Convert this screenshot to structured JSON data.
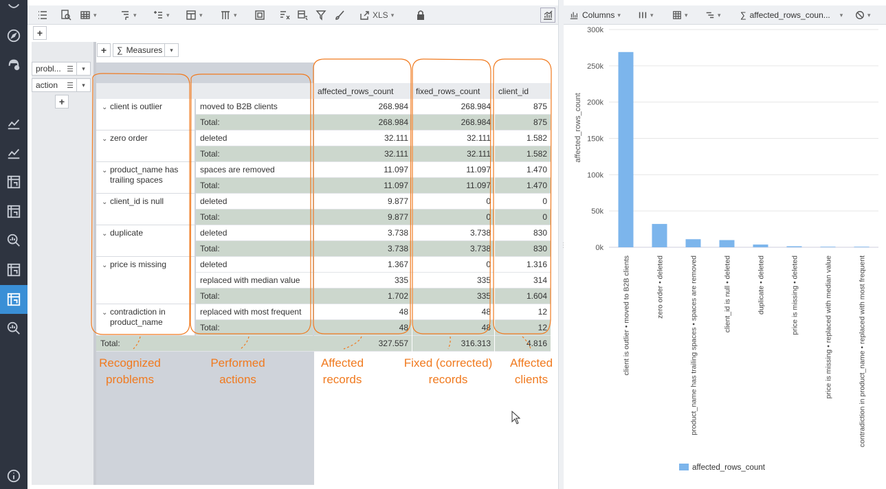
{
  "nav": {
    "items": [
      "app-icon",
      "compass-icon",
      "agent-icon",
      "chart-icon",
      "chart-icon",
      "pivot-icon",
      "pivot-icon",
      "search-chart-icon",
      "pivot-icon",
      "pivot-icon",
      "search-chart-icon"
    ],
    "info_icon": "info-icon"
  },
  "toolbar": {
    "export_label": "XLS"
  },
  "pivot": {
    "measures_label": "Measures",
    "row_fields": [
      {
        "label": "probl..."
      },
      {
        "label": "action"
      }
    ],
    "columns": [
      "affected_rows_count",
      "fixed_rows_count",
      "client_id"
    ],
    "groups": [
      {
        "problem": "client is outlier",
        "rows": [
          {
            "action": "moved to B2B clients",
            "values": [
              "268.984",
              "268.984",
              "875"
            ],
            "total": false
          },
          {
            "action": "Total:",
            "values": [
              "268.984",
              "268.984",
              "875"
            ],
            "total": true
          }
        ]
      },
      {
        "problem": "zero order",
        "rows": [
          {
            "action": "deleted",
            "values": [
              "32.111",
              "32.111",
              "1.582"
            ],
            "total": false
          },
          {
            "action": "Total:",
            "values": [
              "32.111",
              "32.111",
              "1.582"
            ],
            "total": true
          }
        ]
      },
      {
        "problem": "product_name has trailing spaces",
        "rows": [
          {
            "action": "spaces are removed",
            "values": [
              "11.097",
              "11.097",
              "1.470"
            ],
            "total": false
          },
          {
            "action": "Total:",
            "values": [
              "11.097",
              "11.097",
              "1.470"
            ],
            "total": true
          }
        ]
      },
      {
        "problem": "client_id is null",
        "rows": [
          {
            "action": "deleted",
            "values": [
              "9.877",
              "0",
              "0"
            ],
            "total": false
          },
          {
            "action": "Total:",
            "values": [
              "9.877",
              "0",
              "0"
            ],
            "total": true
          }
        ]
      },
      {
        "problem": "duplicate",
        "rows": [
          {
            "action": "deleted",
            "values": [
              "3.738",
              "3.738",
              "830"
            ],
            "total": false
          },
          {
            "action": "Total:",
            "values": [
              "3.738",
              "3.738",
              "830"
            ],
            "total": true
          }
        ]
      },
      {
        "problem": "price is missing",
        "rows": [
          {
            "action": "deleted",
            "values": [
              "1.367",
              "0",
              "1.316"
            ],
            "total": false
          },
          {
            "action": "replaced with median value",
            "values": [
              "335",
              "335",
              "314"
            ],
            "total": false
          },
          {
            "action": "Total:",
            "values": [
              "1.702",
              "335",
              "1.604"
            ],
            "total": true
          }
        ]
      },
      {
        "problem": "contradiction in product_name",
        "rows": [
          {
            "action": "replaced with most frequent",
            "values": [
              "48",
              "48",
              "12"
            ],
            "total": false
          },
          {
            "action": "Total:",
            "values": [
              "48",
              "48",
              "12"
            ],
            "total": true
          }
        ]
      }
    ],
    "grand_total": {
      "label": "Total:",
      "values": [
        "327.557",
        "316.313",
        "4.816"
      ]
    }
  },
  "annotations": [
    {
      "text": "Recognized\nproblems",
      "color": "#f07a1f"
    },
    {
      "text": "Performed\nactions",
      "color": "#f07a1f"
    },
    {
      "text": "Affected\nrecords",
      "color": "#f07a1f"
    },
    {
      "text": "Fixed (corrected)\nrecords",
      "color": "#f07a1f"
    },
    {
      "text": "Affected\nclients",
      "color": "#f07a1f"
    }
  ],
  "chart_toolbar": {
    "type_label": "Columns",
    "measure_label": "affected_rows_coun..."
  },
  "chart_data": {
    "type": "bar",
    "categories": [
      "client is outlier • moved to B2B clients",
      "zero order • deleted",
      "product_name has trailing spaces • spaces are removed",
      "client_id is null • deleted",
      "duplicate • deleted",
      "price is missing • deleted",
      "price is missing • replaced with median value",
      "contradiction in product_name • replaced with most frequent"
    ],
    "series": [
      {
        "name": "affected_rows_count",
        "values": [
          268984,
          32111,
          11097,
          9877,
          3738,
          1367,
          335,
          48
        ],
        "color": "#7cb5ec"
      }
    ],
    "ylabel": "affected_rows_count",
    "ylim": [
      0,
      300000
    ],
    "yticks": [
      "0k",
      "50k",
      "100k",
      "150k",
      "200k",
      "250k",
      "300k"
    ],
    "grid": true,
    "legend": "bottom"
  },
  "colors": {
    "nav_bg": "#2e3440",
    "nav_active": "#3a8fd6",
    "total_row": "#ccd7cd",
    "annotation": "#f07a1f",
    "bar": "#7cb5ec"
  }
}
